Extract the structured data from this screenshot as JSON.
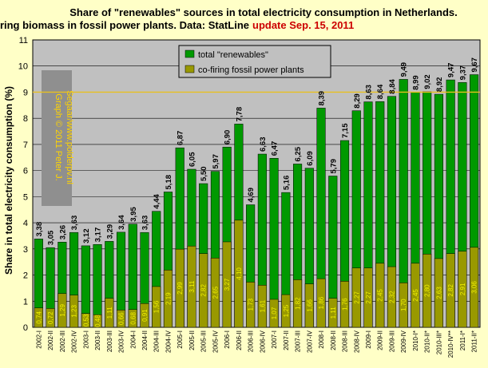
{
  "colors": {
    "background": "#ffffc7",
    "plot_background": "#c0c0c0",
    "total_bar": "#009900",
    "cofiring_bar": "#999900",
    "reference_line": "#e8c020",
    "title_highlight": "#cc0000",
    "credit_text": "#ffd400"
  },
  "chart_data": {
    "type": "bar",
    "title_line1": "Share of \"renewables\" sources in total electricity consumption in Netherlands.",
    "title_line2": "Impact co-firing biomass in fossil power plants. Data: StatLine",
    "title_update": "update Sep. 15, 2011",
    "ylabel": "Share in total electricity consumption (%)",
    "xlabel": "",
    "ylim": [
      0,
      11
    ],
    "yticks": [
      "0",
      "1",
      "2",
      "3",
      "4",
      "5",
      "6",
      "7",
      "8",
      "9",
      "10",
      "11"
    ],
    "grid": true,
    "reference_line": 9,
    "legend_position": "top-center",
    "credit_lines": [
      "Graph © 2011 Peter J.",
      "Segaar/www.polderpv.nl"
    ],
    "categories": [
      "2002-I",
      "2002-II",
      "2002-III",
      "2002-IV",
      "2003-I",
      "2003-II",
      "2003-III",
      "2003-IV",
      "2004-I",
      "2004-II",
      "2004-III",
      "2004-IV",
      "2005-I",
      "2005-II",
      "2005-III",
      "2005-IV",
      "2006-I",
      "2006-II",
      "2006-III",
      "2006-IV",
      "2007-I",
      "2007-II",
      "2007-III",
      "2007-IV",
      "2008-I",
      "2008-II",
      "2008-III",
      "2008-IV",
      "2009-I",
      "2009-II",
      "2009-III",
      "2009-IV",
      "2010-I*",
      "2010-II*",
      "2010-III*",
      "2010-IV**",
      "2011-I*",
      "2011-II*"
    ],
    "series": [
      {
        "name": "total \"renewables\"",
        "values": [
          3.38,
          3.05,
          3.26,
          3.63,
          3.12,
          3.17,
          3.29,
          3.64,
          3.95,
          3.63,
          4.44,
          5.18,
          6.87,
          6.05,
          5.5,
          5.97,
          6.9,
          7.78,
          4.69,
          6.63,
          6.47,
          5.16,
          6.25,
          6.09,
          8.39,
          5.79,
          7.15,
          8.29,
          8.63,
          8.64,
          8.84,
          9.49,
          8.99,
          9.02,
          8.92,
          9.47,
          9.37,
          9.67
        ],
        "labels": [
          "3,38",
          "3,05",
          "3,26",
          "3,63",
          "3,12",
          "3,17",
          "3,29",
          "3,64",
          "3,95",
          "3,63",
          "4,44",
          "5,18",
          "6,87",
          "6,05",
          "5,50",
          "5,97",
          "6,90",
          "7,78",
          "4,69",
          "6,63",
          "6,47",
          "5,16",
          "6,25",
          "6,09",
          "8,39",
          "5,79",
          "7,15",
          "8,29",
          "8,63",
          "8,64",
          "8,84",
          "9,49",
          "8,99",
          "9,02",
          "8,92",
          "9,47",
          "9,37",
          "9,67"
        ]
      },
      {
        "name": "co-firing fossil power plants",
        "values": [
          0.74,
          0.72,
          1.29,
          1.23,
          0.53,
          0.48,
          1.11,
          0.66,
          0.68,
          0.91,
          1.56,
          2.19,
          2.99,
          3.11,
          2.82,
          2.65,
          3.27,
          4.1,
          1.73,
          1.61,
          1.07,
          1.25,
          1.82,
          1.66,
          1.86,
          1.11,
          1.76,
          2.27,
          2.27,
          2.45,
          2.32,
          1.7,
          2.45,
          2.8,
          2.63,
          2.82,
          2.91,
          3.06
        ],
        "labels": [
          "0,74",
          "0,72",
          "1,29",
          "1,23",
          "0,53",
          "0,48",
          "1,11",
          "0,66",
          "0,68",
          "0,91",
          "1,56",
          "2,19",
          "2,99",
          "3,11",
          "2,82",
          "2,65",
          "3,27",
          "4,10",
          "1,73",
          "1,61",
          "1,07",
          "1,25",
          "1,82",
          "1,66",
          "1,86",
          "1,11",
          "1,76",
          "2,27",
          "2,27",
          "2,45",
          "2,32",
          "1,70",
          "2,45",
          "2,80",
          "2,63",
          "2,82",
          "2,91",
          "3,06"
        ]
      }
    ]
  }
}
